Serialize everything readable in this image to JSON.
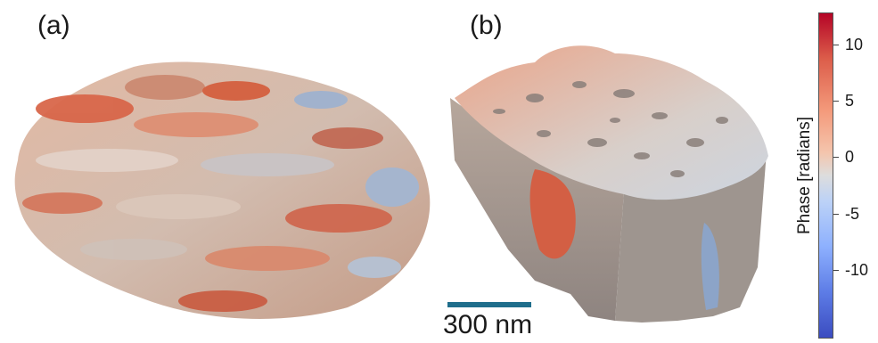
{
  "panels": {
    "a_label": "(a)",
    "b_label": "(b)"
  },
  "scale_bar": {
    "label": "300 nm",
    "color": "#1f6e8c"
  },
  "colorbar": {
    "title": "Phase [radians]",
    "ticks": [
      "10",
      "5",
      "0",
      "-5",
      "-10"
    ],
    "colormap": "coolwarm",
    "max_color": "#b40426",
    "mid_color": "#dddddd",
    "min_color": "#3b4cc0"
  }
}
